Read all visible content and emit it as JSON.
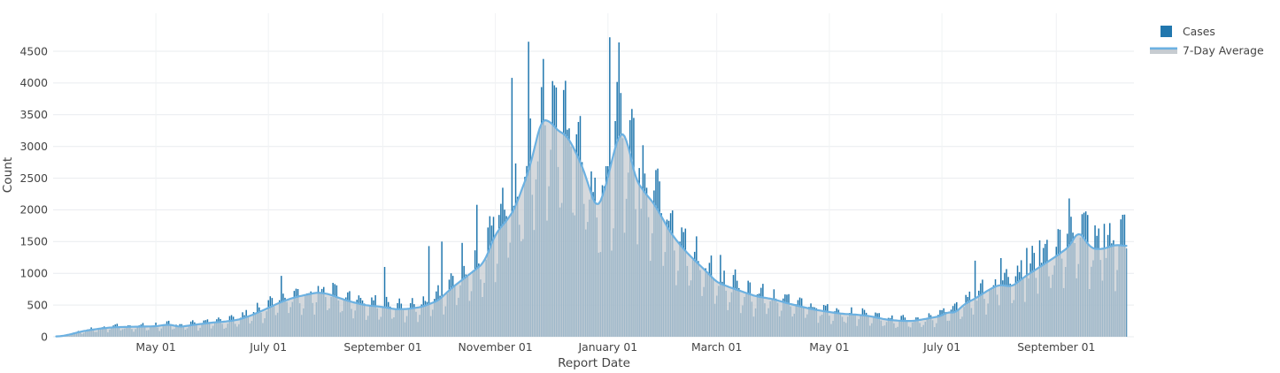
{
  "page": {
    "background": "#ffffff"
  },
  "chart_data": {
    "type": "bar+line",
    "title": "",
    "xlabel": "Report Date",
    "ylabel": "Count",
    "text_color": "#444444",
    "legend": {
      "position": "top-right-outside",
      "entries": [
        "Cases",
        "7-Day Average"
      ]
    },
    "series": [
      {
        "name": "Cases",
        "type": "bar",
        "color": "#2177ae"
      },
      {
        "name": "7-Day Average",
        "type": "line",
        "color": "#6cb1e1",
        "area_fill": "#c7ccd1",
        "area_opacity": 0.75
      }
    ],
    "grid": {
      "horizontal": true,
      "vertical": true,
      "color": "#e9ecef",
      "vertical_color": "#f0f2f4"
    },
    "y_axis": {
      "label": "Count",
      "ticks": [
        0,
        500,
        1000,
        1500,
        2000,
        2500,
        3000,
        3500,
        4000,
        4500
      ],
      "range": [
        0,
        4720
      ]
    },
    "x_axis": {
      "label": "Report Date",
      "date_start": "2020-03-08",
      "date_end": "2021-10-09",
      "ticks": [
        {
          "date": "2020-05-01",
          "label": "May 01"
        },
        {
          "date": "2020-07-01",
          "label": "July 01"
        },
        {
          "date": "2020-09-01",
          "label": "September 01"
        },
        {
          "date": "2020-11-01",
          "label": "November 01"
        },
        {
          "date": "2021-01-01",
          "label": "January 01"
        },
        {
          "date": "2021-03-01",
          "label": "March 01"
        },
        {
          "date": "2021-05-01",
          "label": "May 01"
        },
        {
          "date": "2021-07-01",
          "label": "July 01"
        },
        {
          "date": "2021-09-01",
          "label": "September 01"
        }
      ]
    },
    "avg_7day_keypoints": [
      [
        "2020-03-08",
        2
      ],
      [
        "2020-03-12",
        15
      ],
      [
        "2020-03-16",
        40
      ],
      [
        "2020-03-21",
        80
      ],
      [
        "2020-03-26",
        105
      ],
      [
        "2020-04-01",
        130
      ],
      [
        "2020-04-08",
        150
      ],
      [
        "2020-04-15",
        155
      ],
      [
        "2020-04-22",
        160
      ],
      [
        "2020-05-01",
        165
      ],
      [
        "2020-05-08",
        195
      ],
      [
        "2020-05-14",
        155
      ],
      [
        "2020-05-22",
        190
      ],
      [
        "2020-06-01",
        225
      ],
      [
        "2020-06-08",
        240
      ],
      [
        "2020-06-15",
        270
      ],
      [
        "2020-06-22",
        340
      ],
      [
        "2020-07-01",
        455
      ],
      [
        "2020-07-08",
        550
      ],
      [
        "2020-07-15",
        620
      ],
      [
        "2020-07-22",
        665
      ],
      [
        "2020-07-28",
        700
      ],
      [
        "2020-08-03",
        670
      ],
      [
        "2020-08-10",
        595
      ],
      [
        "2020-08-15",
        550
      ],
      [
        "2020-08-22",
        500
      ],
      [
        "2020-09-01",
        470
      ],
      [
        "2020-09-08",
        432
      ],
      [
        "2020-09-15",
        440
      ],
      [
        "2020-09-22",
        470
      ],
      [
        "2020-10-01",
        570
      ],
      [
        "2020-10-08",
        760
      ],
      [
        "2020-10-15",
        920
      ],
      [
        "2020-10-22",
        1075
      ],
      [
        "2020-10-26",
        1175
      ],
      [
        "2020-11-01",
        1620
      ],
      [
        "2020-11-05",
        1760
      ],
      [
        "2020-11-08",
        1860
      ],
      [
        "2020-11-12",
        2050
      ],
      [
        "2020-11-15",
        2300
      ],
      [
        "2020-11-19",
        2600
      ],
      [
        "2020-11-22",
        2950
      ],
      [
        "2020-11-26",
        3430
      ],
      [
        "2020-12-01",
        3390
      ],
      [
        "2020-12-05",
        3240
      ],
      [
        "2020-12-09",
        3190
      ],
      [
        "2020-12-12",
        3060
      ],
      [
        "2020-12-16",
        2820
      ],
      [
        "2020-12-20",
        2540
      ],
      [
        "2020-12-23",
        2240
      ],
      [
        "2020-12-26",
        2010
      ],
      [
        "2020-12-29",
        2190
      ],
      [
        "2021-01-02",
        2620
      ],
      [
        "2021-01-05",
        3010
      ],
      [
        "2021-01-08",
        3245
      ],
      [
        "2021-01-11",
        3150
      ],
      [
        "2021-01-16",
        2480
      ],
      [
        "2021-01-21",
        2270
      ],
      [
        "2021-01-26",
        2100
      ],
      [
        "2021-02-04",
        1640
      ],
      [
        "2021-02-09",
        1450
      ],
      [
        "2021-02-14",
        1290
      ],
      [
        "2021-02-19",
        1150
      ],
      [
        "2021-02-24",
        1010
      ],
      [
        "2021-03-01",
        860
      ],
      [
        "2021-03-08",
        780
      ],
      [
        "2021-03-15",
        710
      ],
      [
        "2021-03-22",
        640
      ],
      [
        "2021-04-01",
        590
      ],
      [
        "2021-04-08",
        530
      ],
      [
        "2021-04-15",
        480
      ],
      [
        "2021-04-22",
        432
      ],
      [
        "2021-05-01",
        390
      ],
      [
        "2021-05-08",
        362
      ],
      [
        "2021-05-15",
        350
      ],
      [
        "2021-05-22",
        330
      ],
      [
        "2021-06-01",
        270
      ],
      [
        "2021-06-08",
        252
      ],
      [
        "2021-06-15",
        248
      ],
      [
        "2021-06-22",
        280
      ],
      [
        "2021-07-01",
        330
      ],
      [
        "2021-07-04",
        395
      ],
      [
        "2021-07-08",
        370
      ],
      [
        "2021-07-13",
        510
      ],
      [
        "2021-07-20",
        620
      ],
      [
        "2021-07-27",
        750
      ],
      [
        "2021-08-01",
        820
      ],
      [
        "2021-08-08",
        790
      ],
      [
        "2021-08-15",
        950
      ],
      [
        "2021-08-22",
        1080
      ],
      [
        "2021-09-01",
        1270
      ],
      [
        "2021-09-08",
        1420
      ],
      [
        "2021-09-13",
        1670
      ],
      [
        "2021-09-20",
        1390
      ],
      [
        "2021-09-26",
        1380
      ],
      [
        "2021-10-03",
        1450
      ],
      [
        "2021-10-09",
        1430
      ]
    ],
    "bar_spikes": [
      {
        "date": "2020-07-08",
        "value": 960
      },
      {
        "date": "2020-08-05",
        "value": 850
      },
      {
        "date": "2020-09-02",
        "value": 1100
      },
      {
        "date": "2020-09-26",
        "value": 1430
      },
      {
        "date": "2020-10-03",
        "value": 1500
      },
      {
        "date": "2020-10-14",
        "value": 1480
      },
      {
        "date": "2020-10-22",
        "value": 2080
      },
      {
        "date": "2020-10-31",
        "value": 1890
      },
      {
        "date": "2020-11-10",
        "value": 4080
      },
      {
        "date": "2020-11-19",
        "value": 4650
      },
      {
        "date": "2020-12-02",
        "value": 4030
      },
      {
        "date": "2020-12-08",
        "value": 3890
      },
      {
        "date": "2020-12-17",
        "value": 3480
      },
      {
        "date": "2021-01-02",
        "value": 4720
      },
      {
        "date": "2021-01-07",
        "value": 4640
      },
      {
        "date": "2021-01-18",
        "value": 2660
      },
      {
        "date": "2021-03-03",
        "value": 1290
      },
      {
        "date": "2021-07-19",
        "value": 1200
      },
      {
        "date": "2021-08-02",
        "value": 1240
      },
      {
        "date": "2021-08-16",
        "value": 1400
      },
      {
        "date": "2021-08-23",
        "value": 1520
      },
      {
        "date": "2021-09-08",
        "value": 2180
      },
      {
        "date": "2021-09-18",
        "value": 1920
      },
      {
        "date": "2021-09-27",
        "value": 1780
      },
      {
        "date": "2021-10-06",
        "value": 1850
      }
    ],
    "bar_pattern": {
      "weekday_factors_sun_to_sat": [
        0.58,
        0.7,
        1.0,
        1.15,
        1.22,
        1.18,
        0.92
      ],
      "noise_amplitude": 0.16,
      "seed": 7
    }
  }
}
